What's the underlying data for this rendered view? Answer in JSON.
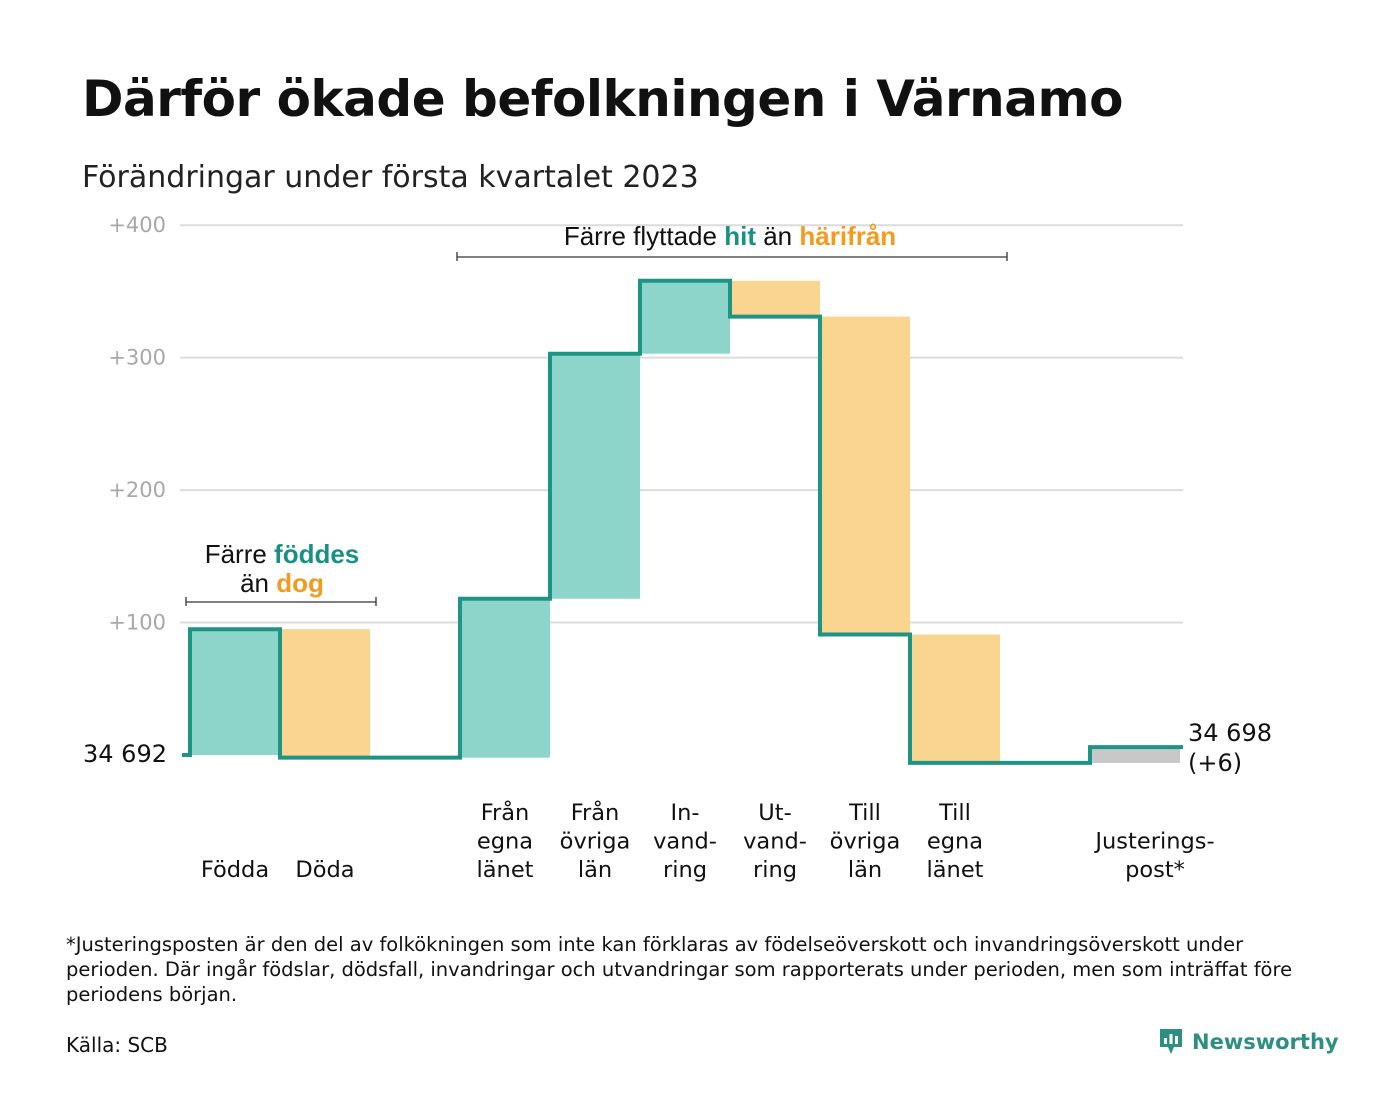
{
  "title": "Därför ökade befolkningen i Värnamo",
  "subtitle": "Förändringar under första kvartalet 2023",
  "footnote": "*Justeringsposten är den del av folkökningen som inte kan förklaras av födelseöverskott och invandringsöverskott under perioden. Där ingår födslar, dödsfall, invandringar och utvandringar som rapporterats under perioden, men som inträffat före periodens början.",
  "source": "Källa: SCB",
  "brand": "Newsworthy",
  "annotations": {
    "births_deaths": {
      "line1_prefix": "Färre ",
      "line1_em": "föddes",
      "line2_prefix": "än ",
      "line2_em": "dog"
    },
    "migration": {
      "prefix": "Färre flyttade ",
      "em1": "hit",
      "middle": " än ",
      "em2": "härifrån"
    }
  },
  "colors": {
    "increase": "#8dd4ca",
    "decrease": "#f9d58f",
    "adjustment": "#c8c8c8",
    "line": "#1e9485",
    "teal_text": "#189185",
    "orange_text": "#f39b1f"
  },
  "chart_data": {
    "type": "waterfall",
    "start_label": "34 692",
    "end_label": [
      "34 698",
      "(+6)"
    ],
    "y_ticks": [
      "+400",
      "+300",
      "+200",
      "+100"
    ],
    "ylim": [
      -8,
      400
    ],
    "grid": true,
    "categories": [
      {
        "label": [
          "Födda"
        ],
        "delta": 95,
        "kind": "increase"
      },
      {
        "label": [
          "Döda"
        ],
        "delta": -97,
        "kind": "decrease"
      },
      {
        "label": [
          ""
        ],
        "delta": 0,
        "kind": "gap"
      },
      {
        "label": [
          "Från",
          "egna",
          "länet"
        ],
        "delta": 120,
        "kind": "increase"
      },
      {
        "label": [
          "Från",
          "övriga",
          "län"
        ],
        "delta": 185,
        "kind": "increase"
      },
      {
        "label": [
          "In-",
          "vand-",
          "ring"
        ],
        "delta": 55,
        "kind": "increase"
      },
      {
        "label": [
          "Ut-",
          "vand-",
          "ring"
        ],
        "delta": -27,
        "kind": "decrease"
      },
      {
        "label": [
          "Till",
          "övriga",
          "län"
        ],
        "delta": -240,
        "kind": "decrease"
      },
      {
        "label": [
          "Till",
          "egna",
          "länet"
        ],
        "delta": -97,
        "kind": "decrease"
      },
      {
        "label": [
          ""
        ],
        "delta": 0,
        "kind": "gap"
      },
      {
        "label": [
          "Justerings-",
          "post*"
        ],
        "delta": 12,
        "kind": "adjustment"
      }
    ]
  }
}
